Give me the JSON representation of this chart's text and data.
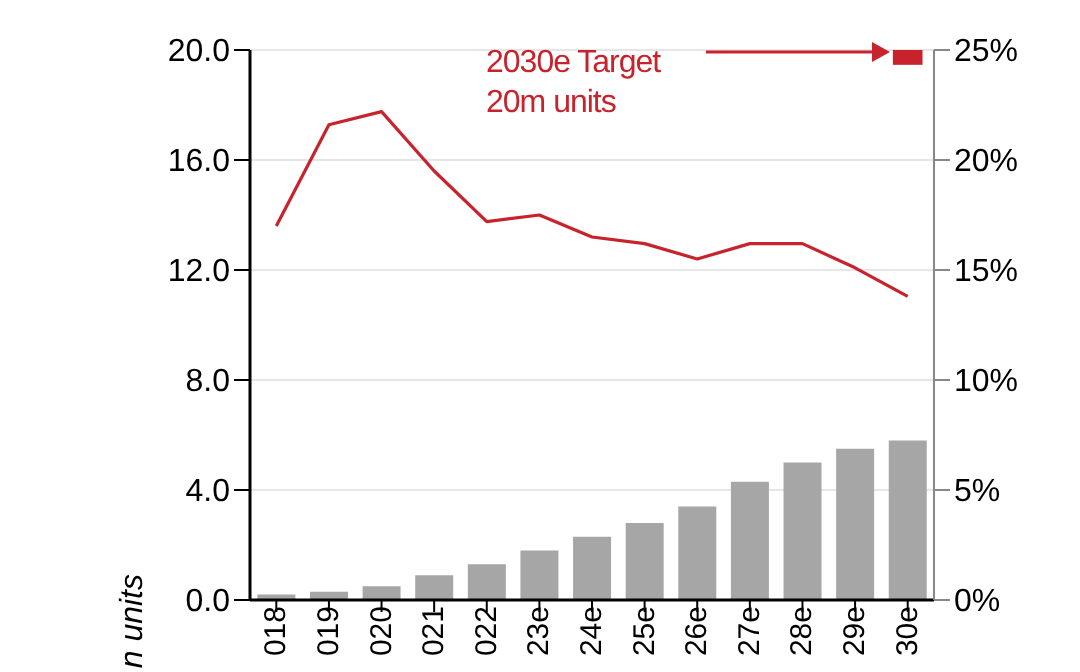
{
  "chart_data": {
    "type": "bar",
    "ylabel": "n units",
    "categories": [
      "018",
      "019",
      "020",
      "021",
      "022",
      "23e",
      "24e",
      "25e",
      "26e",
      "27e",
      "28e",
      "29e",
      "30e"
    ],
    "series": [
      {
        "color": "#a6a6a6",
        "values": [
          0.2,
          0.3,
          0.5,
          0.9,
          1.3,
          1.8,
          2.3,
          2.8,
          3.4,
          4.3,
          5.0,
          5.5,
          5.8
        ]
      },
      {
        "type": "line",
        "axis": "y2",
        "color": "#c8232c",
        "marker": "none",
        "values": [
          17.0,
          21.6,
          22.2,
          19.5,
          17.2,
          17.5,
          16.5,
          16.2,
          15.5,
          16.2,
          16.2,
          15.1,
          13.8
        ]
      },
      {
        "type": "scatter",
        "axis": "y2",
        "color": "#c8232c",
        "marker": "square",
        "values": [
          null,
          null,
          null,
          null,
          null,
          null,
          null,
          null,
          null,
          null,
          null,
          null,
          25
        ]
      }
    ],
    "ylim": [
      0,
      20
    ],
    "yticks": [
      {
        "value": 0,
        "label": "0.0"
      },
      {
        "value": 4,
        "label": "4.0"
      },
      {
        "value": 8,
        "label": "8.0"
      },
      {
        "value": 12,
        "label": "12.0"
      },
      {
        "value": 16,
        "label": "16.0"
      },
      {
        "value": 20,
        "label": "20.0"
      }
    ],
    "y2lim": [
      0,
      25
    ],
    "y2ticks": [
      {
        "value": 0,
        "label": "0%"
      },
      {
        "value": 5,
        "label": "5%"
      },
      {
        "value": 10,
        "label": "10%"
      },
      {
        "value": 15,
        "label": "15%"
      },
      {
        "value": 20,
        "label": "20%"
      },
      {
        "value": 25,
        "label": "25%"
      }
    ],
    "grid": "y",
    "legend": false,
    "annotations": [
      "2030e Target\n20m units"
    ]
  }
}
